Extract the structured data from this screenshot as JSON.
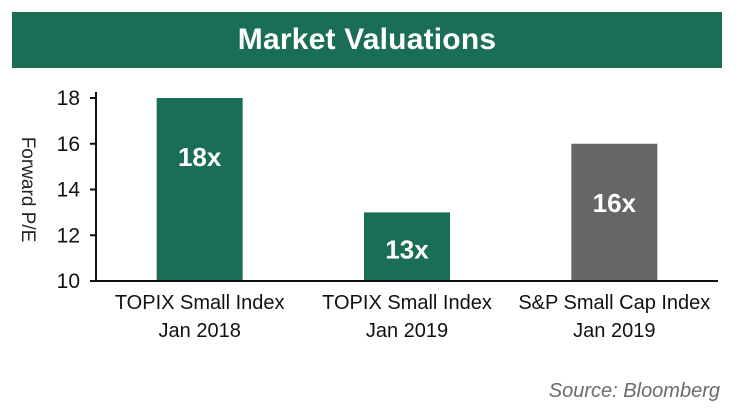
{
  "colors": {
    "header_bg": "#1a6e56",
    "bar_green": "#1a6e56",
    "bar_gray": "#666666",
    "axis": "#111111"
  },
  "chart_data": {
    "type": "bar",
    "title": "Market Valuations",
    "ylabel": "Forward P/E",
    "xlabel": "",
    "ylim": [
      10,
      18
    ],
    "yticks": [
      10,
      12,
      14,
      16,
      18
    ],
    "categories": [
      [
        "TOPIX Small Index",
        "Jan 2018"
      ],
      [
        "TOPIX Small Index",
        "Jan 2019"
      ],
      [
        "S&P Small Cap Index",
        "Jan 2019"
      ]
    ],
    "values": [
      18,
      13,
      16
    ],
    "data_labels": [
      "18x",
      "13x",
      "16x"
    ],
    "bar_colors": [
      "#1a6e56",
      "#1a6e56",
      "#666666"
    ],
    "grid": false,
    "legend": "none"
  },
  "source": "Source: Bloomberg"
}
